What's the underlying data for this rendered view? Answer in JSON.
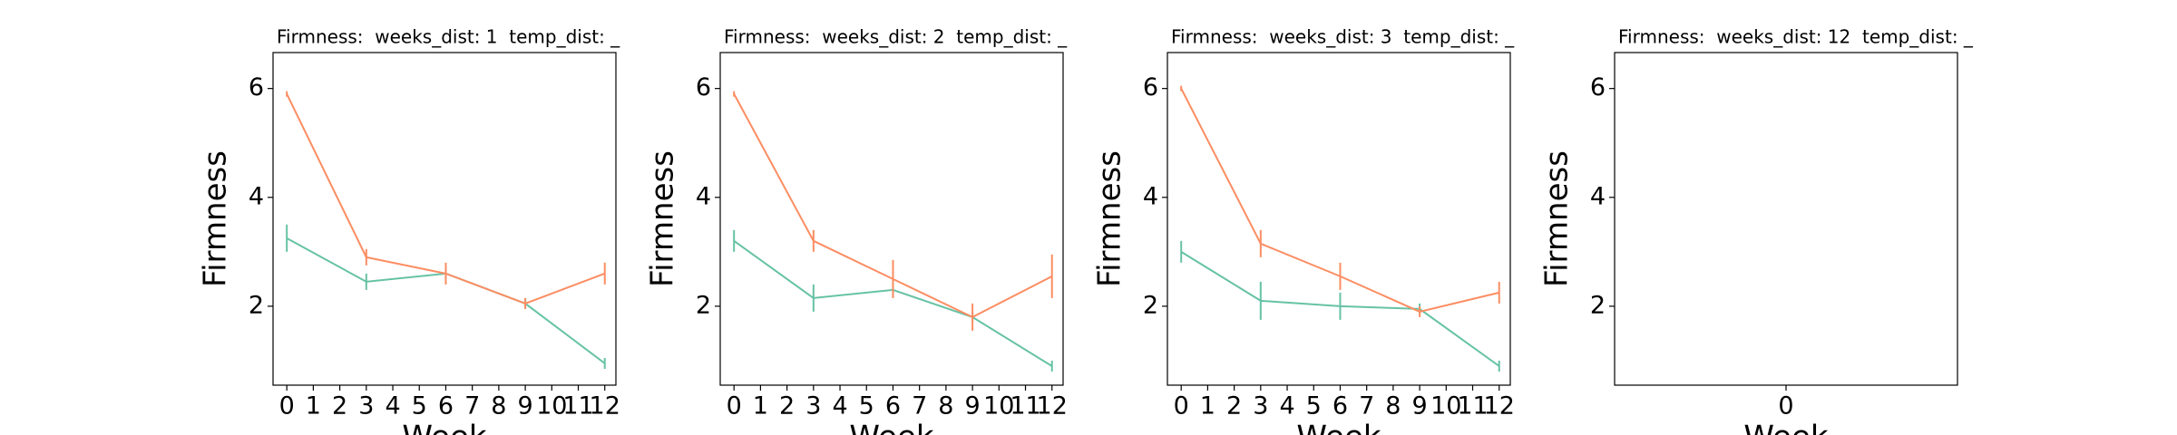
{
  "chart_data": [
    {
      "type": "line",
      "title": "Firmness:  weeks_dist: 1  temp_dist: _",
      "xlabel": "Week",
      "ylabel": "Firmness",
      "x": [
        0,
        3,
        6,
        9,
        12
      ],
      "series": [
        {
          "color": "#66c2a5",
          "values": [
            3.25,
            2.45,
            2.6,
            2.05,
            0.95
          ],
          "errors": [
            0.25,
            0.15,
            0.1,
            0.1,
            0.1
          ]
        },
        {
          "color": "#fc8d62",
          "values": [
            5.9,
            2.9,
            2.6,
            2.05,
            2.6
          ],
          "errors": [
            0.05,
            0.15,
            0.2,
            0.1,
            0.2
          ]
        }
      ],
      "xlim": [
        -0.52,
        12.42
      ],
      "xticks": [
        0,
        1,
        2,
        3,
        4,
        5,
        6,
        7,
        8,
        9,
        10,
        11,
        12
      ],
      "ylim": [
        0.55,
        6.66
      ],
      "yticks": [
        2,
        4,
        6
      ]
    },
    {
      "type": "line",
      "title": "Firmness:  weeks_dist: 2  temp_dist: _",
      "xlabel": "Week",
      "ylabel": "Firmness",
      "x": [
        0,
        3,
        6,
        9,
        12
      ],
      "series": [
        {
          "color": "#66c2a5",
          "values": [
            3.2,
            2.15,
            2.3,
            1.8,
            0.9
          ],
          "errors": [
            0.2,
            0.25,
            0.15,
            0.1,
            0.1
          ]
        },
        {
          "color": "#fc8d62",
          "values": [
            5.9,
            3.2,
            2.5,
            1.8,
            2.55
          ],
          "errors": [
            0.05,
            0.2,
            0.35,
            0.25,
            0.4
          ]
        }
      ],
      "xlim": [
        -0.52,
        12.42
      ],
      "xticks": [
        0,
        1,
        2,
        3,
        4,
        5,
        6,
        7,
        8,
        9,
        10,
        11,
        12
      ],
      "ylim": [
        0.55,
        6.66
      ],
      "yticks": [
        2,
        4,
        6
      ]
    },
    {
      "type": "line",
      "title": "Firmness:  weeks_dist: 3  temp_dist: _",
      "xlabel": "Week",
      "ylabel": "Firmness",
      "x": [
        0,
        3,
        6,
        9,
        12
      ],
      "series": [
        {
          "color": "#66c2a5",
          "values": [
            3.0,
            2.1,
            2.0,
            1.95,
            0.9
          ],
          "errors": [
            0.2,
            0.35,
            0.25,
            0.1,
            0.1
          ]
        },
        {
          "color": "#fc8d62",
          "values": [
            6.0,
            3.15,
            2.55,
            1.9,
            2.25
          ],
          "errors": [
            0.05,
            0.25,
            0.25,
            0.1,
            0.2
          ]
        }
      ],
      "xlim": [
        -0.52,
        12.42
      ],
      "xticks": [
        0,
        1,
        2,
        3,
        4,
        5,
        6,
        7,
        8,
        9,
        10,
        11,
        12
      ],
      "ylim": [
        0.55,
        6.66
      ],
      "yticks": [
        2,
        4,
        6
      ]
    },
    {
      "type": "line",
      "title": "Firmness:  weeks_dist: 12  temp_dist: _",
      "xlabel": "Week",
      "ylabel": "Firmness",
      "x": [],
      "series": [],
      "xlim": [
        -1,
        1
      ],
      "xticks": [
        0
      ],
      "ylim": [
        0.55,
        6.66
      ],
      "yticks": [
        2,
        4,
        6
      ]
    }
  ]
}
